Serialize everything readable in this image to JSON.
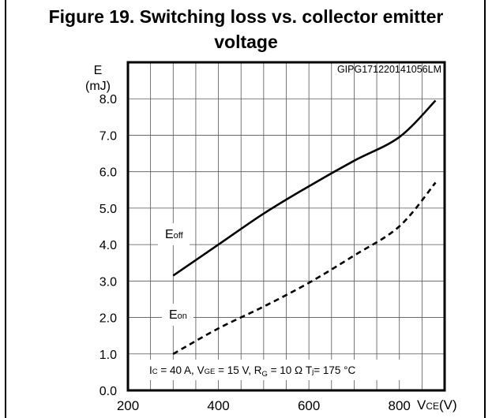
{
  "chart_data": {
    "type": "line",
    "title_line1": "Figure 19. Switching loss vs. collector emitter",
    "title_line2": "voltage",
    "code": "GIPG171220141056LM",
    "ylabel_line1": "E",
    "ylabel_line2": "(mJ)",
    "xlabel": "VCE(V)",
    "xlabel_main": "V",
    "xlabel_sub": "CE",
    "xlabel_unit": "(V)",
    "xlim": [
      200,
      900
    ],
    "ylim": [
      0,
      9
    ],
    "x_ticks": [
      200,
      400,
      600,
      800
    ],
    "y_ticks": [
      0,
      1,
      2,
      3,
      4,
      5,
      6,
      7,
      8
    ],
    "y_tick_labels": [
      "0.0",
      "1.0",
      "2.0",
      "3.0",
      "4.0",
      "5.0",
      "6.0",
      "7.0",
      "8.0"
    ],
    "grid": true,
    "series": [
      {
        "name": "Eoff",
        "label_main": "E",
        "label_sub": "off",
        "style": "solid",
        "x": [
          300,
          400,
          500,
          600,
          700,
          800,
          880
        ],
        "values": [
          3.15,
          4.0,
          4.85,
          5.6,
          6.3,
          6.95,
          7.95
        ]
      },
      {
        "name": "Eon",
        "label_main": "E",
        "label_sub": "on",
        "style": "dashed",
        "x": [
          300,
          400,
          500,
          600,
          700,
          800,
          880
        ],
        "values": [
          1.0,
          1.7,
          2.3,
          2.95,
          3.7,
          4.5,
          5.7
        ]
      }
    ],
    "conditions": "IC = 40 A, VGE = 15 V, RG = 10 Ω Tj= 175 °C",
    "cond": {
      "ic": "I",
      "ic_sub": "C",
      "ic_val": " = 40 A, ",
      "vge": "V",
      "vge_sub": "GE",
      "vge_val": " = 15 V, ",
      "rg": "R",
      "rg_sub": "G",
      "rg_val": " = 10 Ω ",
      "tj": "T",
      "tj_sub": "j",
      "tj_val": "= 175 °C"
    }
  }
}
